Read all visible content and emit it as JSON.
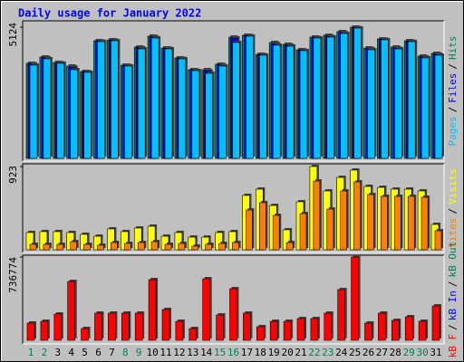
{
  "title": "Daily usage for January 2022",
  "legend_separator": "/",
  "chart_data": [
    {
      "type": "bar",
      "ylim": [
        0,
        5124
      ],
      "yticks": [
        5124
      ],
      "series": [
        {
          "name": "Pages",
          "color": "#00c0ff",
          "values": [
            3640,
            3887,
            3711,
            3463,
            3357,
            4559,
            4594,
            3605,
            4276,
            4700,
            4276,
            3887,
            3428,
            3322,
            3605,
            4524,
            4771,
            4029,
            4417,
            4382,
            4205,
            4700,
            4736,
            4877,
            5089,
            4241,
            4630,
            4276,
            4559,
            3923,
            4029
          ]
        },
        {
          "name": "Files",
          "color": "#0000ff",
          "values": [
            3690,
            3930,
            3730,
            3560,
            3380,
            4580,
            4615,
            3625,
            4320,
            4740,
            4295,
            3905,
            3445,
            3420,
            3650,
            4700,
            4790,
            4045,
            4480,
            4420,
            4225,
            4720,
            4770,
            4920,
            5110,
            4280,
            4650,
            4310,
            4575,
            3960,
            4065
          ]
        },
        {
          "name": "Hits",
          "color": "#00805c",
          "values": [
            3711,
            3958,
            3746,
            3605,
            3393,
            4594,
            4630,
            3640,
            4347,
            4771,
            4311,
            3923,
            3463,
            3463,
            3675,
            4736,
            4806,
            4064,
            4524,
            4453,
            4241,
            4736,
            4806,
            4948,
            5124,
            4311,
            4665,
            4347,
            4594,
            3993,
            4099
          ]
        }
      ]
    },
    {
      "type": "bar",
      "ylim": [
        0,
        923
      ],
      "yticks": [
        923
      ],
      "series": [
        {
          "name": "Sites",
          "color": "#ff8000",
          "values": [
            60,
            60,
            60,
            90,
            60,
            50,
            80,
            70,
            80,
            90,
            60,
            70,
            40,
            60,
            70,
            80,
            441,
            522,
            381,
            80,
            401,
            762,
            451,
            652,
            752,
            612,
            592,
            592,
            592,
            582,
            211
          ]
        },
        {
          "name": "Visits",
          "color": "#ffff00",
          "values": [
            191,
            201,
            201,
            191,
            171,
            150,
            231,
            201,
            241,
            261,
            150,
            191,
            140,
            140,
            191,
            201,
            602,
            672,
            491,
            221,
            532,
            923,
            652,
            802,
            883,
            702,
            692,
            672,
            672,
            652,
            281
          ]
        }
      ]
    },
    {
      "type": "bar",
      "ylim": [
        0,
        736774
      ],
      "yticks": [
        736774
      ],
      "categories": [
        "1",
        "2",
        "3",
        "4",
        "5",
        "6",
        "7",
        "8",
        "9",
        "10",
        "11",
        "12",
        "13",
        "14",
        "15",
        "16",
        "17",
        "18",
        "19",
        "20",
        "21",
        "22",
        "23",
        "24",
        "25",
        "26",
        "27",
        "28",
        "29",
        "30",
        "31"
      ],
      "category_colors": [
        "#00805c",
        "#00805c",
        "#000000",
        "#000000",
        "#000000",
        "#000000",
        "#000000",
        "#00805c",
        "#00805c",
        "#000000",
        "#000000",
        "#000000",
        "#000000",
        "#000000",
        "#00805c",
        "#00805c",
        "#000000",
        "#000000",
        "#000000",
        "#000000",
        "#000000",
        "#00805c",
        "#00805c",
        "#000000",
        "#000000",
        "#000000",
        "#000000",
        "#000000",
        "#00805c",
        "#00805c",
        "#000000"
      ],
      "series": [
        {
          "name": "kB F",
          "color": "#ff0000",
          "values": [
            152152,
            168168,
            232232,
            520520,
            104104,
            240240,
            240240,
            240240,
            240240,
            536536,
            272272,
            168168,
            104104,
            544544,
            224224,
            456456,
            240240,
            120120,
            168168,
            168168,
            192192,
            192192,
            240240,
            448448,
            736774,
            152152,
            240240,
            176176,
            208208,
            168168,
            304304
          ]
        },
        {
          "name": "kB In",
          "color": "#0000ff",
          "values": [
            null,
            null,
            null,
            null,
            null,
            null,
            null,
            null,
            null,
            null,
            null,
            null,
            null,
            null,
            null,
            null,
            null,
            null,
            null,
            null,
            null,
            null,
            null,
            null,
            null,
            null,
            null,
            null,
            null,
            null,
            null
          ]
        },
        {
          "name": "kB Out",
          "color": "#00805c",
          "values": [
            null,
            null,
            null,
            null,
            null,
            null,
            null,
            null,
            null,
            null,
            null,
            null,
            null,
            null,
            null,
            null,
            null,
            null,
            null,
            null,
            null,
            null,
            null,
            null,
            null,
            null,
            null,
            null,
            null,
            null,
            null
          ]
        }
      ]
    }
  ]
}
